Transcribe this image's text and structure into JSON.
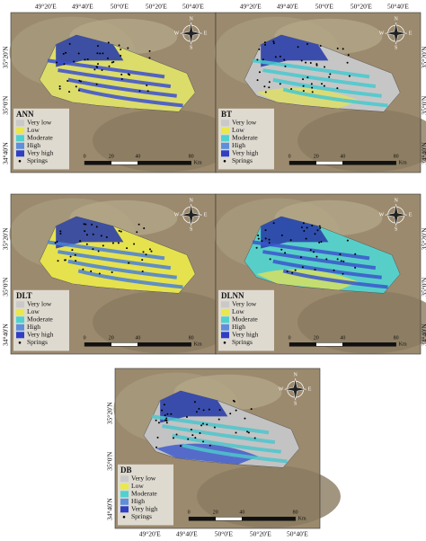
{
  "panels": [
    {
      "label": "ANN",
      "lon_labels": [
        "49°20'E",
        "49°40'E",
        "50°0'E",
        "50°20'E",
        "50°40'E"
      ],
      "lat_labels": [
        "35°20'N",
        "35°0'N",
        "34°40'N"
      ],
      "legend": [
        "Very low",
        "Low",
        "Moderate",
        "High",
        "Very high",
        "Springs"
      ],
      "scale": [
        "0",
        "20",
        "40",
        "80"
      ],
      "scale_unit": "Km",
      "compass": [
        "N",
        "W",
        "E",
        "S"
      ]
    },
    {
      "label": "BT",
      "lat_labels": [
        "35°20'N",
        "35°0'N",
        "34°40'N"
      ],
      "lon_labels": [
        "49°20'E",
        "49°40'E",
        "50°0'E",
        "50°20'E",
        "50°40'E"
      ],
      "legend": [
        "Very low",
        "Low",
        "Moderate",
        "High",
        "Very high",
        "Springs"
      ],
      "scale": [
        "0",
        "20",
        "40",
        "80"
      ],
      "scale_unit": "Km",
      "compass": [
        "N",
        "W",
        "E",
        "S"
      ]
    },
    {
      "label": "DLT",
      "lat_labels": [
        "35°20'N",
        "35°0'N",
        "34°40'N"
      ],
      "legend": [
        "Very low",
        "Low",
        "Moderate",
        "High",
        "Very high",
        "Springs"
      ],
      "scale": [
        "0",
        "20",
        "40",
        "80"
      ],
      "scale_unit": "Km",
      "compass": [
        "N",
        "W",
        "E",
        "S"
      ]
    },
    {
      "label": "DLNN",
      "lat_labels": [
        "35°20'N",
        "35°0'N",
        "34°40'N"
      ],
      "legend": [
        "Very low",
        "Low",
        "Moderate",
        "High",
        "Very high",
        "Springs"
      ],
      "scale": [
        "0",
        "20",
        "40",
        "80"
      ],
      "scale_unit": "Km",
      "compass": [
        "N",
        "W",
        "E",
        "S"
      ]
    },
    {
      "label": "DB",
      "lat_labels": [
        "35°20'N",
        "35°0'N",
        "34°40'N"
      ],
      "lon_labels": [
        "49°20'E",
        "49°40'E",
        "50°0'E",
        "50°20'E",
        "50°40'E"
      ],
      "legend": [
        "Very low",
        "Low",
        "Moderate",
        "High",
        "Very high",
        "Springs"
      ],
      "scale": [
        "0",
        "20",
        "40",
        "80"
      ],
      "scale_unit": "Km",
      "compass": [
        "N",
        "W",
        "E",
        "S"
      ]
    }
  ]
}
